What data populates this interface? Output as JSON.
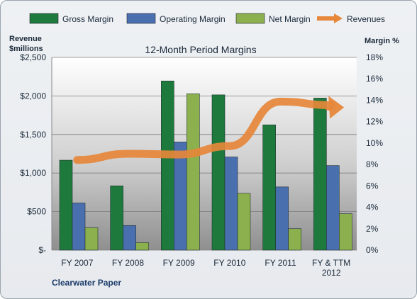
{
  "chart_data": {
    "type": "bar",
    "title": "12-Month Period Margins",
    "company": "Clearwater Paper",
    "left_axis_label": [
      "Revenue",
      "$millions"
    ],
    "right_axis_label": "Margin %",
    "categories": [
      [
        "FY 2007"
      ],
      [
        "FY 2008"
      ],
      [
        "FY 2009"
      ],
      [
        "FY 2010"
      ],
      [
        "FY 2011"
      ],
      [
        "FY & TTM",
        "2012"
      ]
    ],
    "left_ticks": [
      "$-",
      "$500",
      "$1,000",
      "$1,500",
      "$2,000",
      "$2,500"
    ],
    "right_ticks": [
      "0%",
      "2%",
      "4%",
      "6%",
      "8%",
      "10%",
      "12%",
      "14%",
      "16%",
      "18%"
    ],
    "ylim_revenue": [
      0,
      2500
    ],
    "ylim_margin_pct": [
      0,
      18
    ],
    "grid": true,
    "legend_position": "top",
    "series": [
      {
        "name": "Gross Margin",
        "axis": "right",
        "color": "#1e7a3c",
        "values": [
          8.4,
          6.0,
          15.8,
          14.5,
          11.7,
          14.2
        ]
      },
      {
        "name": "Operating Margin",
        "axis": "right",
        "color": "#4a6fae",
        "values": [
          4.4,
          2.3,
          10.1,
          8.7,
          5.9,
          7.9
        ]
      },
      {
        "name": "Net Margin",
        "axis": "right",
        "color": "#8cb04e",
        "values": [
          2.1,
          0.7,
          14.6,
          5.3,
          2.0,
          3.4
        ]
      },
      {
        "name": "Revenues",
        "axis": "left",
        "type": "line",
        "color": "#e6873a",
        "values": [
          1170,
          1250,
          1240,
          1350,
          1927,
          1880
        ]
      }
    ]
  }
}
